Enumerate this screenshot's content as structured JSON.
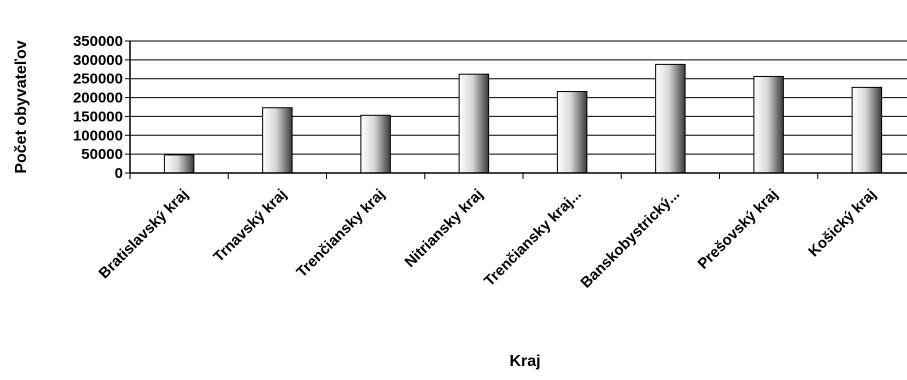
{
  "chart_data": {
    "type": "bar",
    "title": "",
    "xlabel": "Kraj",
    "ylabel": "Počet obyvateľov",
    "categories": [
      "Bratislavský kraj",
      "Trnavský kraj",
      "Trenčiansky kraj",
      "Nitriansky kraj",
      "Trenčiansky kraj...",
      "Banskobystrický...",
      "Prešovský kraj",
      "Košický kraj"
    ],
    "values": [
      48000,
      173000,
      153000,
      262000,
      216000,
      288000,
      256000,
      227000
    ],
    "ylim": [
      0,
      350000
    ],
    "yticks": [
      "0",
      "50000",
      "100000",
      "150000",
      "200000",
      "250000",
      "300000",
      "350000"
    ],
    "grid": true,
    "legend": "none"
  }
}
